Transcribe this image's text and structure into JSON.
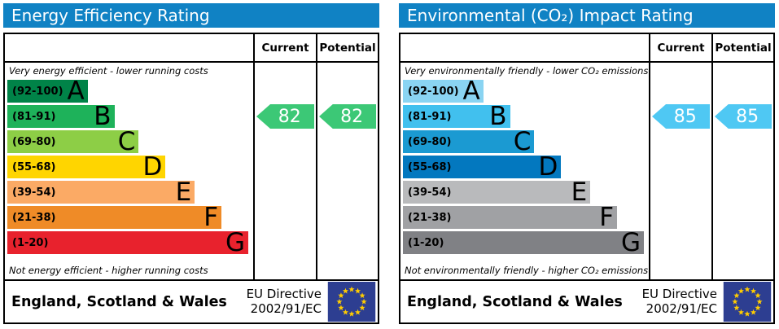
{
  "header_bg": "#1082c4",
  "panels": [
    {
      "title": "Energy Efficiency Rating",
      "title_bg": "#1082c4",
      "columns": {
        "current": "Current",
        "potential": "Potential"
      },
      "caption_top": "Very energy efficient - lower running costs",
      "caption_bottom": "Not energy efficient - higher running costs",
      "bands": [
        {
          "range": "(92-100)",
          "letter": "A",
          "color": "#008348",
          "width_pct": 33
        },
        {
          "range": "(81-91)",
          "letter": "B",
          "color": "#1eb25a",
          "width_pct": 44
        },
        {
          "range": "(69-80)",
          "letter": "C",
          "color": "#8dce46",
          "width_pct": 54
        },
        {
          "range": "(55-68)",
          "letter": "D",
          "color": "#ffd500",
          "width_pct": 65
        },
        {
          "range": "(39-54)",
          "letter": "E",
          "color": "#fbaa65",
          "width_pct": 77
        },
        {
          "range": "(21-38)",
          "letter": "F",
          "color": "#ef8b27",
          "width_pct": 88
        },
        {
          "range": "(1-20)",
          "letter": "G",
          "color": "#e8222d",
          "width_pct": 99
        }
      ],
      "current": {
        "value": "82",
        "color": "#3cc876",
        "band_index": 1
      },
      "potential": {
        "value": "82",
        "color": "#3cc876",
        "band_index": 1
      },
      "footer": {
        "region": "England, Scotland & Wales",
        "directive_line1": "EU Directive",
        "directive_line2": "2002/91/EC"
      }
    },
    {
      "title": "Environmental (CO₂) Impact Rating",
      "title_bg": "#1082c4",
      "columns": {
        "current": "Current",
        "potential": "Potential"
      },
      "caption_top": "Very environmentally friendly - lower CO₂ emissions",
      "caption_bottom": "Not environmentally friendly - higher CO₂ emissions",
      "bands": [
        {
          "range": "(92-100)",
          "letter": "A",
          "color": "#8ad4f2",
          "width_pct": 33
        },
        {
          "range": "(81-91)",
          "letter": "B",
          "color": "#41c0ee",
          "width_pct": 44
        },
        {
          "range": "(69-80)",
          "letter": "C",
          "color": "#1b9ad2",
          "width_pct": 54
        },
        {
          "range": "(55-68)",
          "letter": "D",
          "color": "#0378bf",
          "width_pct": 65
        },
        {
          "range": "(39-54)",
          "letter": "E",
          "color": "#b9babc",
          "width_pct": 77
        },
        {
          "range": "(21-38)",
          "letter": "F",
          "color": "#a0a1a4",
          "width_pct": 88
        },
        {
          "range": "(1-20)",
          "letter": "G",
          "color": "#808185",
          "width_pct": 99
        }
      ],
      "current": {
        "value": "85",
        "color": "#4fc8f3",
        "band_index": 1
      },
      "potential": {
        "value": "85",
        "color": "#4fc8f3",
        "band_index": 1
      },
      "footer": {
        "region": "England, Scotland & Wales",
        "directive_line1": "EU Directive",
        "directive_line2": "2002/91/EC"
      }
    }
  ],
  "eu_flag": {
    "bg": "#2d3e91",
    "star_color": "#ffcc00"
  },
  "chart_data": [
    {
      "type": "bar",
      "title": "Energy Efficiency Rating",
      "categories": [
        "A (92-100)",
        "B (81-91)",
        "C (69-80)",
        "D (55-68)",
        "E (39-54)",
        "F (21-38)",
        "G (1-20)"
      ],
      "band_ranges": [
        [
          92,
          100
        ],
        [
          81,
          91
        ],
        [
          69,
          80
        ],
        [
          55,
          68
        ],
        [
          39,
          54
        ],
        [
          21,
          38
        ],
        [
          1,
          20
        ]
      ],
      "band_colors": [
        "#008348",
        "#1eb25a",
        "#8dce46",
        "#ffd500",
        "#fbaa65",
        "#ef8b27",
        "#e8222d"
      ],
      "current": 82,
      "potential": 82,
      "current_band": "B",
      "potential_band": "B",
      "scale_min": 1,
      "scale_max": 100,
      "annotations": [
        "Very energy efficient - lower running costs",
        "Not energy efficient - higher running costs",
        "England, Scotland & Wales",
        "EU Directive 2002/91/EC"
      ]
    },
    {
      "type": "bar",
      "title": "Environmental (CO₂) Impact Rating",
      "categories": [
        "A (92-100)",
        "B (81-91)",
        "C (69-80)",
        "D (55-68)",
        "E (39-54)",
        "F (21-38)",
        "G (1-20)"
      ],
      "band_ranges": [
        [
          92,
          100
        ],
        [
          81,
          91
        ],
        [
          69,
          80
        ],
        [
          55,
          68
        ],
        [
          39,
          54
        ],
        [
          21,
          38
        ],
        [
          1,
          20
        ]
      ],
      "band_colors": [
        "#8ad4f2",
        "#41c0ee",
        "#1b9ad2",
        "#0378bf",
        "#b9babc",
        "#a0a1a4",
        "#808185"
      ],
      "current": 85,
      "potential": 85,
      "current_band": "B",
      "potential_band": "B",
      "scale_min": 1,
      "scale_max": 100,
      "annotations": [
        "Very environmentally friendly - lower CO₂ emissions",
        "Not environmentally friendly - higher CO₂ emissions",
        "England, Scotland & Wales",
        "EU Directive 2002/91/EC"
      ]
    }
  ]
}
